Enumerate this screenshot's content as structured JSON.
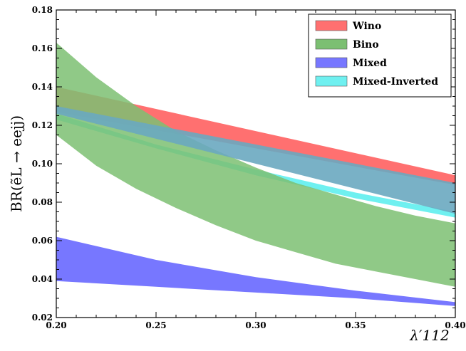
{
  "chart_data": {
    "type": "area",
    "xlabel": "λ′112",
    "ylabel": "BR(ẽL → eejj)",
    "xlim": [
      0.2,
      0.4
    ],
    "ylim": [
      0.02,
      0.18
    ],
    "xticks": [
      "0.20",
      "0.25",
      "0.30",
      "0.35",
      "0.40"
    ],
    "yticks": [
      "0.02",
      "0.04",
      "0.06",
      "0.08",
      "0.10",
      "0.12",
      "0.14",
      "0.16",
      "0.18"
    ],
    "legend_position": "top-right",
    "grid": false,
    "series": [
      {
        "name": "Wino",
        "color": "#ff7070",
        "x": [
          0.2,
          0.4
        ],
        "upper": [
          0.14,
          0.094
        ],
        "lower": [
          0.127,
          0.089
        ]
      },
      {
        "name": "Bino",
        "color": "#7cbf72",
        "x": [
          0.2,
          0.22,
          0.24,
          0.26,
          0.28,
          0.3,
          0.32,
          0.34,
          0.36,
          0.38,
          0.4
        ],
        "upper": [
          0.163,
          0.145,
          0.13,
          0.117,
          0.107,
          0.098,
          0.09,
          0.084,
          0.078,
          0.073,
          0.069
        ],
        "lower": [
          0.115,
          0.099,
          0.087,
          0.077,
          0.068,
          0.06,
          0.054,
          0.048,
          0.044,
          0.04,
          0.036
        ]
      },
      {
        "name": "Mixed",
        "color": "#7777ff",
        "x": [
          0.2,
          0.25,
          0.3,
          0.35,
          0.4
        ],
        "upper": [
          0.062,
          0.05,
          0.041,
          0.034,
          0.028
        ],
        "lower": [
          0.039,
          0.036,
          0.033,
          0.03,
          0.026
        ]
      },
      {
        "name": "Mixed-Inverted",
        "color": "#6ff0f0",
        "x": [
          0.2,
          0.25,
          0.3,
          0.35,
          0.4
        ],
        "upper": [
          0.126,
          0.11,
          0.097,
          0.085,
          0.075
        ],
        "lower": [
          0.123,
          0.108,
          0.094,
          0.082,
          0.072
        ]
      }
    ],
    "overlay_band": {
      "color": "#6aa8c0",
      "x": [
        0.2,
        0.4
      ],
      "upper": [
        0.13,
        0.09
      ],
      "lower": [
        0.126,
        0.074
      ]
    }
  }
}
